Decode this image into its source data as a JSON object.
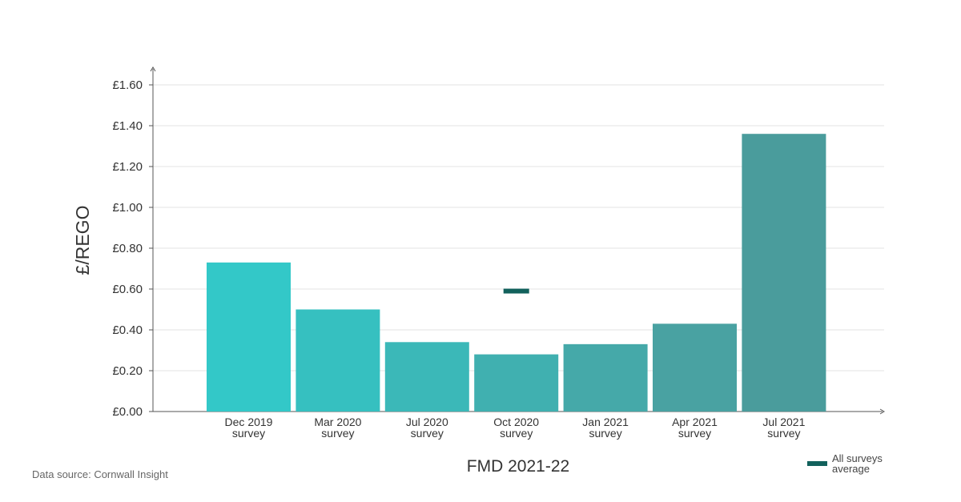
{
  "chart_data": {
    "type": "bar",
    "xlabel": "FMD 2021-22",
    "ylabel": "£/REGO",
    "ylim": [
      0,
      1.6
    ],
    "yticks": [
      0,
      0.2,
      0.4,
      0.6,
      0.8,
      1.0,
      1.2,
      1.4,
      1.6
    ],
    "ytick_labels": [
      "£0.00",
      "£0.20",
      "£0.40",
      "£0.60",
      "£0.80",
      "£1.00",
      "£1.20",
      "£1.40",
      "£1.60"
    ],
    "grid": true,
    "categories": [
      [
        "Dec 2019",
        "survey"
      ],
      [
        "Mar 2020",
        "survey"
      ],
      [
        "Jul 2020",
        "survey"
      ],
      [
        "Oct 2020",
        "survey"
      ],
      [
        "Jan 2021",
        "survey"
      ],
      [
        "Apr 2021",
        "survey"
      ],
      [
        "Jul 2021",
        "survey"
      ]
    ],
    "values": [
      0.73,
      0.5,
      0.34,
      0.28,
      0.33,
      0.43,
      1.36
    ],
    "bar_colors": [
      "#33c8c8",
      "#36c0c0",
      "#3bb8b8",
      "#40b0b0",
      "#45a9a9",
      "#49a2a2",
      "#4a9c9c"
    ],
    "average": {
      "name": "All surveys average",
      "value": 0.59,
      "category_index": 3,
      "color": "#12615c"
    },
    "legend_position": "bottom-right"
  },
  "legend": {
    "label": "All surveys average",
    "color": "#12615c"
  },
  "source": "Data source: Cornwall Insight"
}
